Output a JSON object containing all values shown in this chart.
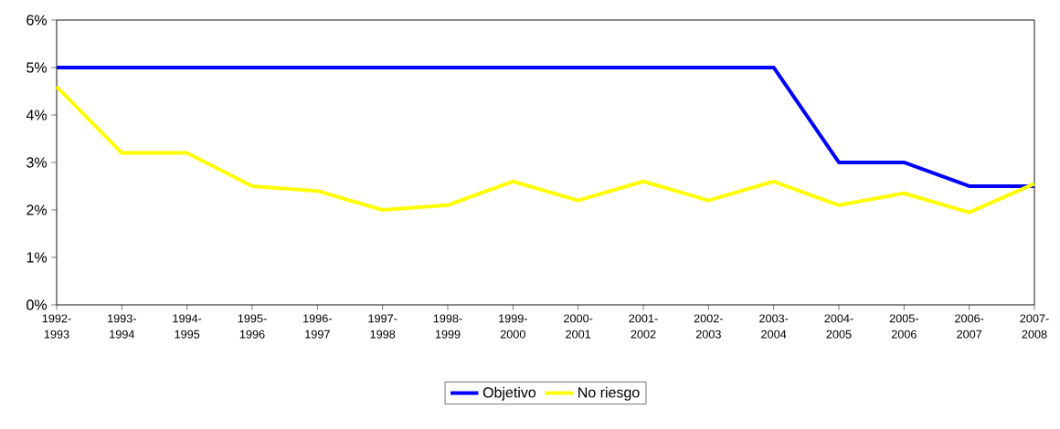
{
  "chart_data": {
    "type": "line",
    "categories": [
      "1992-1993",
      "1993-1994",
      "1994-1995",
      "1995-1996",
      "1996-1997",
      "1997-1998",
      "1998-1999",
      "1999-2000",
      "2000-2001",
      "2001-2002",
      "2002-2003",
      "2003-2004",
      "2004-2005",
      "2005-2006",
      "2006-2007",
      "2007-2008"
    ],
    "series": [
      {
        "name": "Objetivo",
        "color": "#0000ff",
        "values": [
          5,
          5,
          5,
          5,
          5,
          5,
          5,
          5,
          5,
          5,
          5,
          5,
          3,
          3,
          2.5,
          2.5
        ]
      },
      {
        "name": "No riesgo",
        "color": "#ffff00",
        "values": [
          4.6,
          3.2,
          3.2,
          2.5,
          2.4,
          2.0,
          2.1,
          2.6,
          2.2,
          2.6,
          2.2,
          2.6,
          2.1,
          2.35,
          1.95,
          2.55
        ]
      }
    ],
    "ylim": [
      0,
      6
    ],
    "yticks": [
      {
        "value": 0,
        "label": "0%"
      },
      {
        "value": 1,
        "label": "1%"
      },
      {
        "value": 2,
        "label": "2%"
      },
      {
        "value": 3,
        "label": "3%"
      },
      {
        "value": 4,
        "label": "4%"
      },
      {
        "value": 5,
        "label": "5%"
      },
      {
        "value": 6,
        "label": "6%"
      }
    ],
    "grid": false,
    "legend": "bottom",
    "marker": "none",
    "line_style": "solid"
  }
}
